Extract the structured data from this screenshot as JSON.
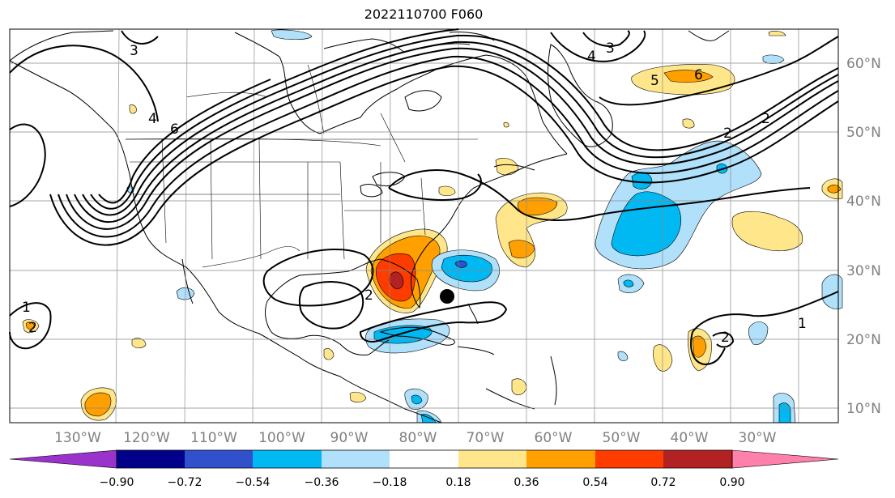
{
  "title": "2022110700 F060",
  "map": {
    "lon_labels": [
      "130°W",
      "120°W",
      "110°W",
      "100°W",
      "90°W",
      "80°W",
      "70°W",
      "60°W",
      "50°W",
      "40°W",
      "30°W"
    ],
    "lat_labels": [
      "60°N",
      "50°N",
      "40°N",
      "30°N",
      "20°N",
      "10°N"
    ],
    "contour_labels": [
      "3",
      "4",
      "6",
      "3",
      "4",
      "5",
      "6",
      "2",
      "2",
      "1",
      "2",
      "2",
      "1",
      "2"
    ],
    "marker": "storm-center-dot"
  },
  "colorbar": {
    "ticks": [
      "−0.90",
      "−0.72",
      "−0.54",
      "−0.36",
      "−0.18",
      "0.18",
      "0.36",
      "0.54",
      "0.72",
      "0.90"
    ],
    "colors": [
      "#9a33cc",
      "#00008b",
      "#3050cc",
      "#00b8f2",
      "#b0e0fa",
      "#ffffff",
      "#ffe68a",
      "#ffa000",
      "#ff3c00",
      "#b22222",
      "#ff80aa"
    ]
  }
}
